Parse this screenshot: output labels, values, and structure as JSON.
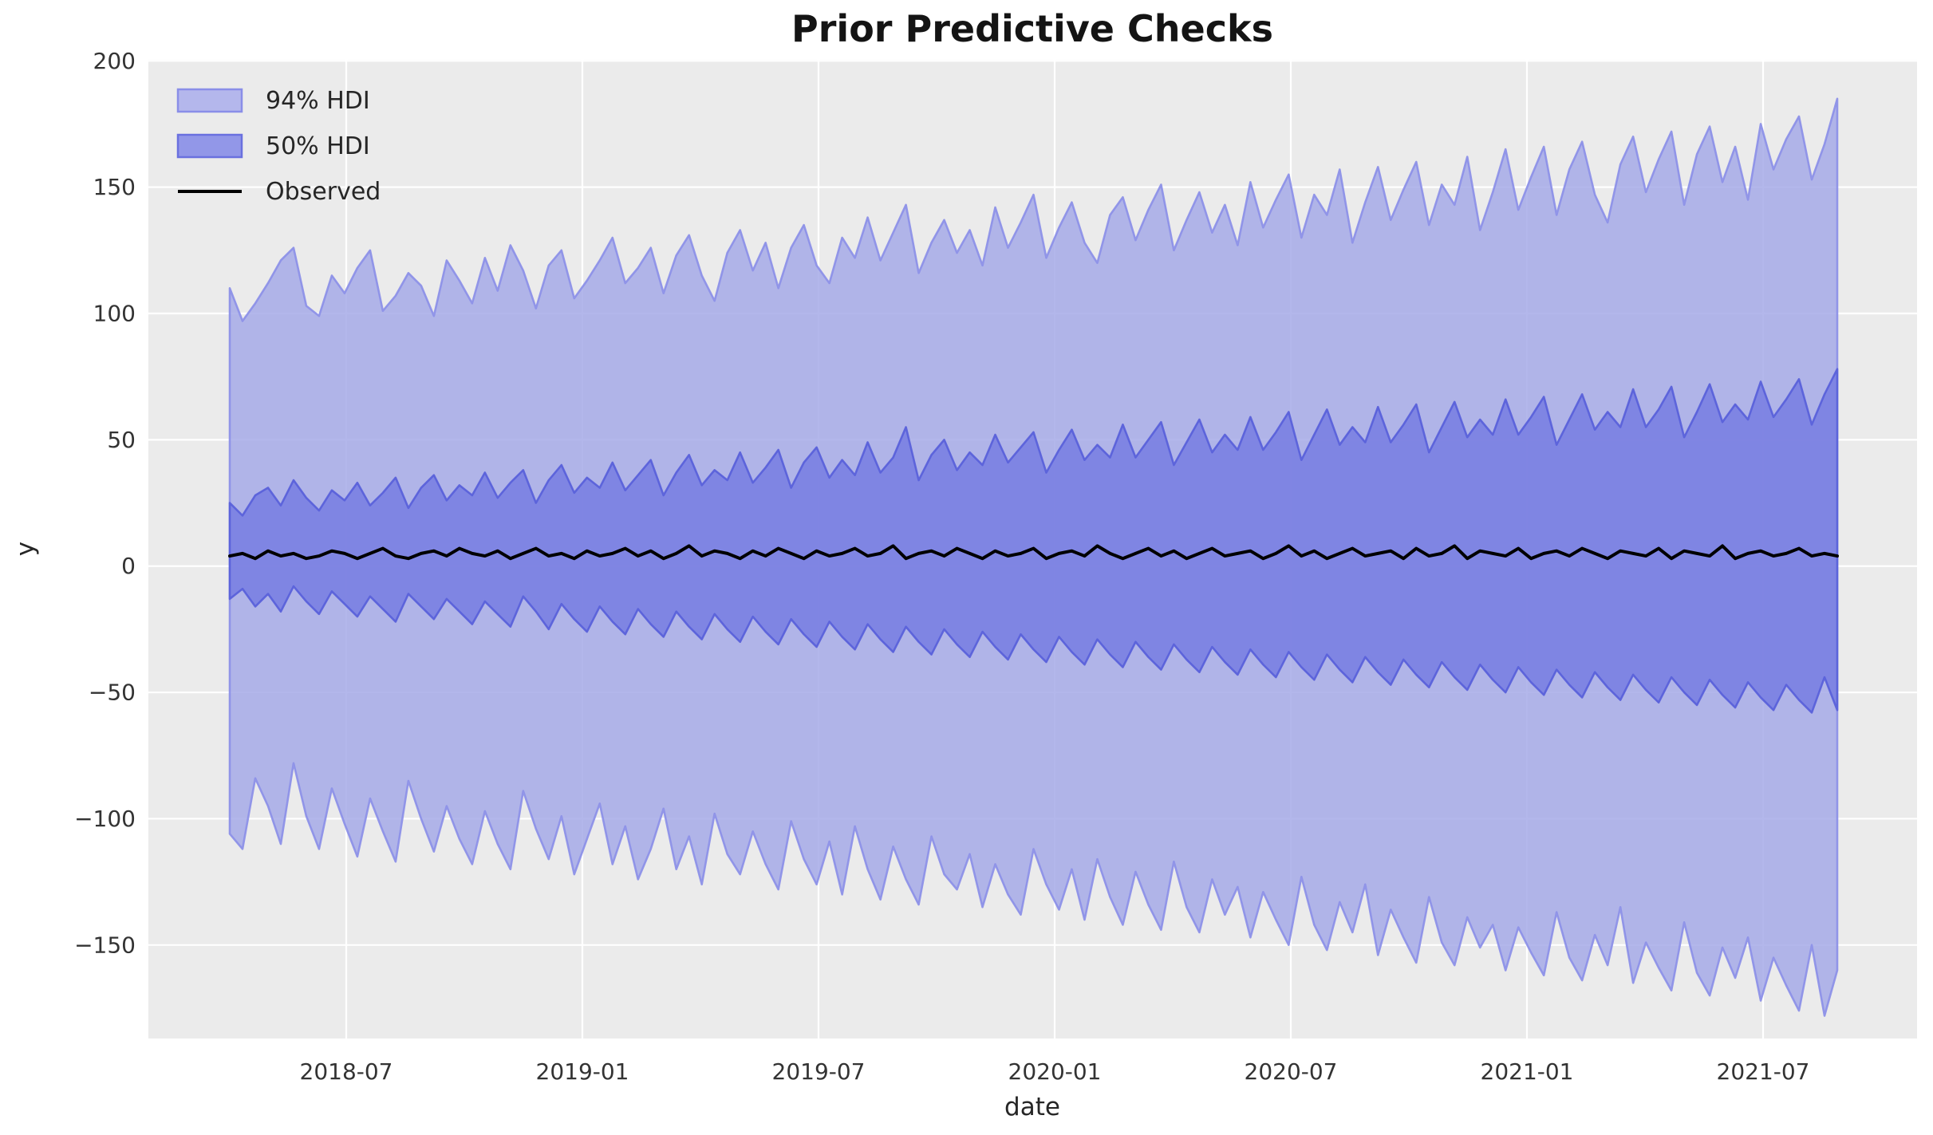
{
  "figure": {
    "title": "Prior Predictive Checks",
    "axes_background": "#ebebeb",
    "grid_color": "#ffffff",
    "figure_background": "#ffffff"
  },
  "legend_colors": {
    "hdi94_fill": "#b4b7ec",
    "hdi94_edge": "#8a8ee8",
    "hdi50_fill": "#9297e8",
    "hdi50_edge": "#6a70df",
    "observed": "#000000"
  },
  "chart_data": {
    "type": "area",
    "title": "Prior Predictive Checks",
    "xlabel": "date",
    "ylabel": "y",
    "grid": true,
    "legend_position": "upper left",
    "legend": [
      "94% HDI",
      "50% HDI",
      "Observed"
    ],
    "x_start_date": "2018-04-02",
    "x_step_days": 10,
    "n_points": 127,
    "x_tick_labels": [
      "2018-07",
      "2019-01",
      "2019-07",
      "2020-01",
      "2020-07",
      "2021-01",
      "2021-07"
    ],
    "y_tick_labels": [
      "200",
      "150",
      "100",
      "50",
      "0",
      "−50",
      "−100",
      "−150"
    ],
    "y_tick_values": [
      200,
      150,
      100,
      50,
      0,
      -50,
      -100,
      -150
    ],
    "ylim": [
      -187,
      200.4
    ],
    "series": [
      {
        "name": "94% HDI",
        "kind": "band",
        "fill": "#a6aae8",
        "edge": "#8d91e8",
        "fill_opacity": 0.85,
        "upper": [
          110,
          97,
          104,
          112,
          121,
          126,
          103,
          99,
          115,
          108,
          118,
          125,
          101,
          107,
          116,
          111,
          99,
          121,
          113,
          104,
          122,
          109,
          127,
          117,
          102,
          119,
          125,
          106,
          113,
          121,
          130,
          112,
          118,
          126,
          108,
          123,
          131,
          115,
          105,
          124,
          133,
          117,
          128,
          110,
          126,
          135,
          119,
          112,
          130,
          122,
          138,
          121,
          132,
          143,
          116,
          128,
          137,
          124,
          133,
          119,
          142,
          126,
          136,
          147,
          122,
          134,
          144,
          128,
          120,
          139,
          146,
          129,
          141,
          151,
          125,
          137,
          148,
          132,
          143,
          127,
          152,
          134,
          145,
          155,
          130,
          147,
          139,
          157,
          128,
          144,
          158,
          137,
          149,
          160,
          135,
          151,
          143,
          162,
          133,
          148,
          165,
          141,
          154,
          166,
          139,
          157,
          168,
          147,
          136,
          159,
          170,
          148,
          161,
          172,
          143,
          163,
          174,
          152,
          166,
          145,
          175,
          157,
          169,
          178,
          153,
          167,
          185
        ],
        "lower": [
          -106,
          -112,
          -84,
          -95,
          -110,
          -78,
          -99,
          -112,
          -88,
          -102,
          -115,
          -92,
          -105,
          -117,
          -85,
          -100,
          -113,
          -95,
          -108,
          -118,
          -97,
          -110,
          -120,
          -89,
          -104,
          -116,
          -99,
          -122,
          -108,
          -94,
          -118,
          -103,
          -124,
          -112,
          -96,
          -120,
          -107,
          -126,
          -98,
          -114,
          -122,
          -105,
          -118,
          -128,
          -101,
          -116,
          -126,
          -109,
          -130,
          -103,
          -120,
          -132,
          -111,
          -124,
          -134,
          -107,
          -122,
          -128,
          -114,
          -135,
          -118,
          -130,
          -138,
          -112,
          -126,
          -136,
          -120,
          -140,
          -116,
          -131,
          -142,
          -121,
          -134,
          -144,
          -117,
          -135,
          -145,
          -124,
          -138,
          -127,
          -147,
          -129,
          -140,
          -150,
          -123,
          -142,
          -152,
          -133,
          -145,
          -126,
          -154,
          -136,
          -147,
          -157,
          -131,
          -149,
          -158,
          -139,
          -151,
          -142,
          -160,
          -143,
          -153,
          -162,
          -137,
          -155,
          -164,
          -146,
          -158,
          -135,
          -165,
          -149,
          -159,
          -168,
          -141,
          -161,
          -170,
          -151,
          -163,
          -147,
          -172,
          -155,
          -166,
          -176,
          -150,
          -178,
          -160
        ]
      },
      {
        "name": "50% HDI",
        "kind": "band",
        "fill": "#7a7fe2",
        "edge": "#5a61da",
        "fill_opacity": 0.9,
        "upper": [
          25,
          20,
          28,
          31,
          24,
          34,
          27,
          22,
          30,
          26,
          33,
          24,
          29,
          35,
          23,
          31,
          36,
          26,
          32,
          28,
          37,
          27,
          33,
          38,
          25,
          34,
          40,
          29,
          35,
          31,
          41,
          30,
          36,
          42,
          28,
          37,
          44,
          32,
          38,
          34,
          45,
          33,
          39,
          46,
          31,
          41,
          47,
          35,
          42,
          36,
          49,
          37,
          43,
          55,
          34,
          44,
          50,
          38,
          45,
          40,
          52,
          41,
          47,
          53,
          37,
          46,
          54,
          42,
          48,
          43,
          56,
          43,
          50,
          57,
          40,
          49,
          58,
          45,
          52,
          46,
          59,
          46,
          53,
          61,
          42,
          52,
          62,
          48,
          55,
          49,
          63,
          49,
          56,
          64,
          45,
          55,
          65,
          51,
          58,
          52,
          66,
          52,
          59,
          67,
          48,
          58,
          68,
          54,
          61,
          55,
          70,
          55,
          62,
          71,
          51,
          61,
          72,
          57,
          64,
          58,
          73,
          59,
          66,
          74,
          56,
          68,
          78
        ],
        "lower": [
          -13,
          -9,
          -16,
          -11,
          -18,
          -8,
          -14,
          -19,
          -10,
          -15,
          -20,
          -12,
          -17,
          -22,
          -11,
          -16,
          -21,
          -13,
          -18,
          -23,
          -14,
          -19,
          -24,
          -12,
          -18,
          -25,
          -15,
          -21,
          -26,
          -16,
          -22,
          -27,
          -17,
          -23,
          -28,
          -18,
          -24,
          -29,
          -19,
          -25,
          -30,
          -20,
          -26,
          -31,
          -21,
          -27,
          -32,
          -22,
          -28,
          -33,
          -23,
          -29,
          -34,
          -24,
          -30,
          -35,
          -25,
          -31,
          -36,
          -26,
          -32,
          -37,
          -27,
          -33,
          -38,
          -28,
          -34,
          -39,
          -29,
          -35,
          -40,
          -30,
          -36,
          -41,
          -31,
          -37,
          -42,
          -32,
          -38,
          -43,
          -33,
          -39,
          -44,
          -34,
          -40,
          -45,
          -35,
          -41,
          -46,
          -36,
          -42,
          -47,
          -37,
          -43,
          -48,
          -38,
          -44,
          -49,
          -39,
          -45,
          -50,
          -40,
          -46,
          -51,
          -41,
          -47,
          -52,
          -42,
          -48,
          -53,
          -43,
          -49,
          -54,
          -44,
          -50,
          -55,
          -45,
          -51,
          -56,
          -46,
          -52,
          -57,
          -47,
          -53,
          -58,
          -44,
          -57
        ]
      },
      {
        "name": "Observed",
        "kind": "line",
        "color": "#000000",
        "values": [
          4,
          5,
          3,
          6,
          4,
          5,
          3,
          4,
          6,
          5,
          3,
          5,
          7,
          4,
          3,
          5,
          6,
          4,
          7,
          5,
          4,
          6,
          3,
          5,
          7,
          4,
          5,
          3,
          6,
          4,
          5,
          7,
          4,
          6,
          3,
          5,
          8,
          4,
          6,
          5,
          3,
          6,
          4,
          7,
          5,
          3,
          6,
          4,
          5,
          7,
          4,
          5,
          8,
          3,
          5,
          6,
          4,
          7,
          5,
          3,
          6,
          4,
          5,
          7,
          3,
          5,
          6,
          4,
          8,
          5,
          3,
          5,
          7,
          4,
          6,
          3,
          5,
          7,
          4,
          5,
          6,
          3,
          5,
          8,
          4,
          6,
          3,
          5,
          7,
          4,
          5,
          6,
          3,
          7,
          4,
          5,
          8,
          3,
          6,
          5,
          4,
          7,
          3,
          5,
          6,
          4,
          7,
          5,
          3,
          6,
          5,
          4,
          7,
          3,
          6,
          5,
          4,
          8,
          3,
          5,
          6,
          4,
          5,
          7,
          4,
          5,
          4
        ]
      }
    ]
  }
}
